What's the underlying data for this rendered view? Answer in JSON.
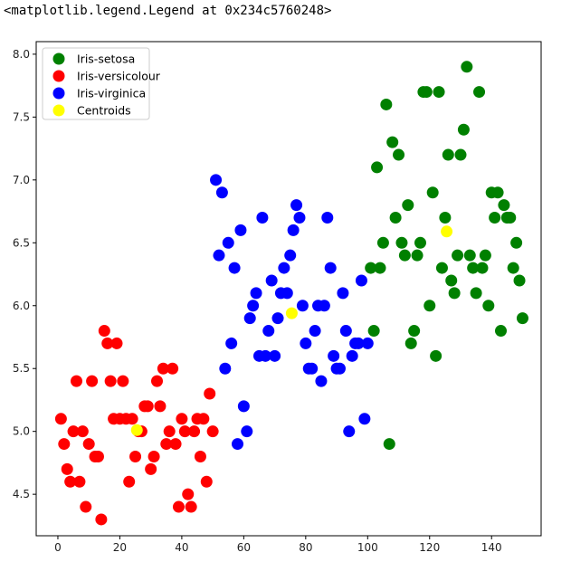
{
  "output_text": "<matplotlib.legend.Legend at 0x234c5760248>",
  "chart_data": {
    "type": "scatter",
    "title": "",
    "xlabel": "",
    "ylabel": "",
    "xlim": [
      -7,
      156
    ],
    "ylim": [
      4.17,
      8.1
    ],
    "xticks": [
      0,
      20,
      40,
      60,
      80,
      100,
      120,
      140
    ],
    "yticks": [
      4.5,
      5.0,
      5.5,
      6.0,
      6.5,
      7.0,
      7.5,
      8.0
    ],
    "xtick_labels": [
      "0",
      "20",
      "40",
      "60",
      "80",
      "100",
      "120",
      "140"
    ],
    "ytick_labels": [
      "4.5",
      "5.0",
      "5.5",
      "6.0",
      "6.5",
      "7.0",
      "7.5",
      "8.0"
    ],
    "grid": false,
    "legend_position": "top-left",
    "series": [
      {
        "name": "Iris-setosa",
        "color": "#008000",
        "points": [
          [
            101,
            6.3
          ],
          [
            102,
            5.8
          ],
          [
            103,
            7.1
          ],
          [
            104,
            6.3
          ],
          [
            105,
            6.5
          ],
          [
            106,
            7.6
          ],
          [
            107,
            4.9
          ],
          [
            108,
            7.3
          ],
          [
            109,
            6.7
          ],
          [
            110,
            7.2
          ],
          [
            111,
            6.5
          ],
          [
            112,
            6.4
          ],
          [
            113,
            6.8
          ],
          [
            114,
            5.7
          ],
          [
            115,
            5.8
          ],
          [
            116,
            6.4
          ],
          [
            117,
            6.5
          ],
          [
            118,
            7.7
          ],
          [
            119,
            7.7
          ],
          [
            120,
            6.0
          ],
          [
            121,
            6.9
          ],
          [
            122,
            5.6
          ],
          [
            123,
            7.7
          ],
          [
            124,
            6.3
          ],
          [
            125,
            6.7
          ],
          [
            126,
            7.2
          ],
          [
            127,
            6.2
          ],
          [
            128,
            6.1
          ],
          [
            129,
            6.4
          ],
          [
            130,
            7.2
          ],
          [
            131,
            7.4
          ],
          [
            132,
            7.9
          ],
          [
            133,
            6.4
          ],
          [
            134,
            6.3
          ],
          [
            135,
            6.1
          ],
          [
            136,
            7.7
          ],
          [
            137,
            6.3
          ],
          [
            138,
            6.4
          ],
          [
            139,
            6.0
          ],
          [
            140,
            6.9
          ],
          [
            141,
            6.7
          ],
          [
            142,
            6.9
          ],
          [
            143,
            5.8
          ],
          [
            144,
            6.8
          ],
          [
            145,
            6.7
          ],
          [
            146,
            6.7
          ],
          [
            147,
            6.3
          ],
          [
            148,
            6.5
          ],
          [
            149,
            6.2
          ],
          [
            150,
            5.9
          ]
        ]
      },
      {
        "name": "Iris-versicolour",
        "color": "#ff0000",
        "points": [
          [
            1,
            5.1
          ],
          [
            2,
            4.9
          ],
          [
            3,
            4.7
          ],
          [
            4,
            4.6
          ],
          [
            5,
            5.0
          ],
          [
            6,
            5.4
          ],
          [
            7,
            4.6
          ],
          [
            8,
            5.0
          ],
          [
            9,
            4.4
          ],
          [
            10,
            4.9
          ],
          [
            11,
            5.4
          ],
          [
            12,
            4.8
          ],
          [
            13,
            4.8
          ],
          [
            14,
            4.3
          ],
          [
            15,
            5.8
          ],
          [
            16,
            5.7
          ],
          [
            17,
            5.4
          ],
          [
            18,
            5.1
          ],
          [
            19,
            5.7
          ],
          [
            20,
            5.1
          ],
          [
            21,
            5.4
          ],
          [
            22,
            5.1
          ],
          [
            23,
            4.6
          ],
          [
            24,
            5.1
          ],
          [
            25,
            4.8
          ],
          [
            26,
            5.0
          ],
          [
            27,
            5.0
          ],
          [
            28,
            5.2
          ],
          [
            29,
            5.2
          ],
          [
            30,
            4.7
          ],
          [
            31,
            4.8
          ],
          [
            32,
            5.4
          ],
          [
            33,
            5.2
          ],
          [
            34,
            5.5
          ],
          [
            35,
            4.9
          ],
          [
            36,
            5.0
          ],
          [
            37,
            5.5
          ],
          [
            38,
            4.9
          ],
          [
            39,
            4.4
          ],
          [
            40,
            5.1
          ],
          [
            41,
            5.0
          ],
          [
            42,
            4.5
          ],
          [
            43,
            4.4
          ],
          [
            44,
            5.0
          ],
          [
            45,
            5.1
          ],
          [
            46,
            4.8
          ],
          [
            47,
            5.1
          ],
          [
            48,
            4.6
          ],
          [
            49,
            5.3
          ],
          [
            50,
            5.0
          ]
        ]
      },
      {
        "name": "Iris-virginica",
        "color": "#0000ff",
        "points": [
          [
            51,
            7.0
          ],
          [
            52,
            6.4
          ],
          [
            53,
            6.9
          ],
          [
            54,
            5.5
          ],
          [
            55,
            6.5
          ],
          [
            56,
            5.7
          ],
          [
            57,
            6.3
          ],
          [
            58,
            4.9
          ],
          [
            59,
            6.6
          ],
          [
            60,
            5.2
          ],
          [
            61,
            5.0
          ],
          [
            62,
            5.9
          ],
          [
            63,
            6.0
          ],
          [
            64,
            6.1
          ],
          [
            65,
            5.6
          ],
          [
            66,
            6.7
          ],
          [
            67,
            5.6
          ],
          [
            68,
            5.8
          ],
          [
            69,
            6.2
          ],
          [
            70,
            5.6
          ],
          [
            71,
            5.9
          ],
          [
            72,
            6.1
          ],
          [
            73,
            6.3
          ],
          [
            74,
            6.1
          ],
          [
            75,
            6.4
          ],
          [
            76,
            6.6
          ],
          [
            77,
            6.8
          ],
          [
            78,
            6.7
          ],
          [
            79,
            6.0
          ],
          [
            80,
            5.7
          ],
          [
            81,
            5.5
          ],
          [
            82,
            5.5
          ],
          [
            83,
            5.8
          ],
          [
            84,
            6.0
          ],
          [
            85,
            5.4
          ],
          [
            86,
            6.0
          ],
          [
            87,
            6.7
          ],
          [
            88,
            6.3
          ],
          [
            89,
            5.6
          ],
          [
            90,
            5.5
          ],
          [
            91,
            5.5
          ],
          [
            92,
            6.1
          ],
          [
            93,
            5.8
          ],
          [
            94,
            5.0
          ],
          [
            95,
            5.6
          ],
          [
            96,
            5.7
          ],
          [
            97,
            5.7
          ],
          [
            98,
            6.2
          ],
          [
            99,
            5.1
          ],
          [
            100,
            5.7
          ]
        ]
      },
      {
        "name": "Centroids",
        "color": "#ffff00",
        "points": [
          [
            25.5,
            5.01
          ],
          [
            75.5,
            5.94
          ],
          [
            125.5,
            6.59
          ]
        ]
      }
    ]
  }
}
